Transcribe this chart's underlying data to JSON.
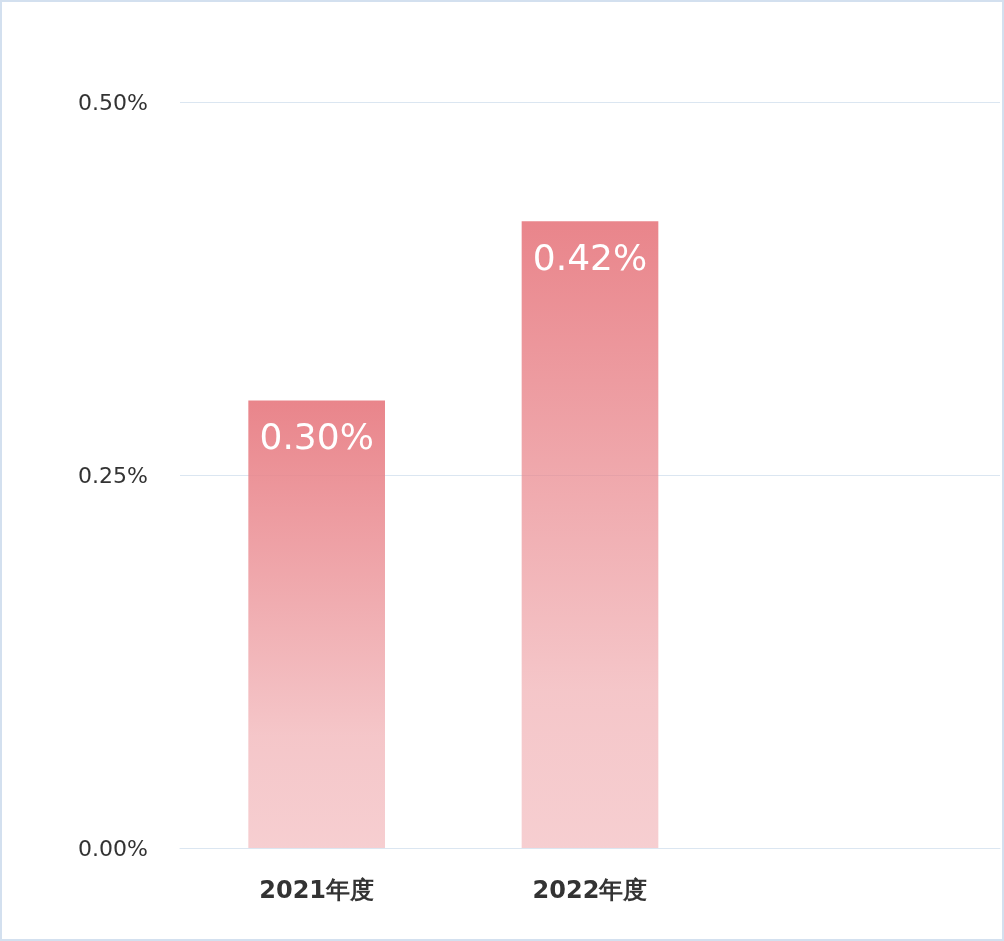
{
  "chart_data": {
    "type": "bar",
    "categories": [
      "2021年度",
      "2022年度",
      null
    ],
    "values": [
      0.3,
      0.42,
      null
    ],
    "color": "#e9858b",
    "value_labels": [
      "0.30%",
      "0.42%",
      null
    ],
    "ylim": [
      0,
      0.5
    ],
    "yticks": [
      {
        "value": 0,
        "label": "0.00%"
      },
      {
        "value": 0.25,
        "label": "0.25%"
      },
      {
        "value": 0.5,
        "label": "0.50%"
      }
    ],
    "grid": "y"
  }
}
